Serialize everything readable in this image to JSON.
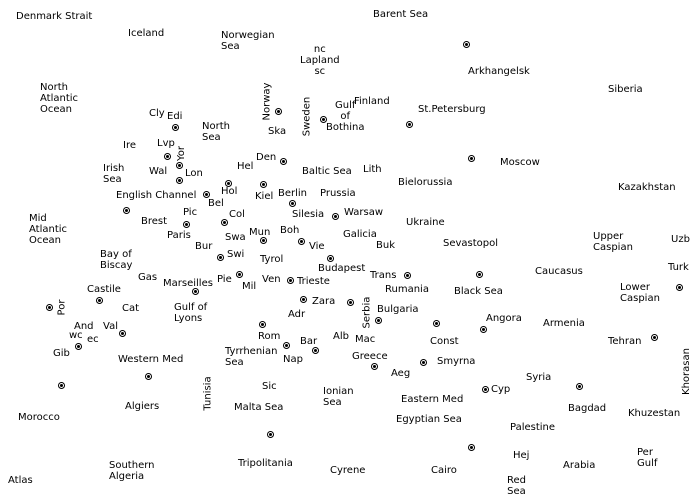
{
  "map": {
    "regions": [
      {
        "id": "denmark-strait",
        "label": "Denmark Strait"
      },
      {
        "id": "barent-sea",
        "label": "Barent Sea"
      },
      {
        "id": "iceland",
        "label": "Iceland"
      },
      {
        "id": "norwegian-sea",
        "label": "Norwegian\nSea"
      },
      {
        "id": "lapland",
        "label": "nc\nLapland\nsc"
      },
      {
        "id": "arkhangelsk",
        "label": "Arkhangelsk"
      },
      {
        "id": "siberia",
        "label": "Siberia"
      },
      {
        "id": "north-atlantic-ocean",
        "label": "North\nAtlantic\nOcean"
      },
      {
        "id": "norway",
        "label": "Norway"
      },
      {
        "id": "sweden",
        "label": "Sweden"
      },
      {
        "id": "gulf-of-bothina",
        "label": "Gulf\nof\nBothina"
      },
      {
        "id": "finland",
        "label": "Finland"
      },
      {
        "id": "st-petersburg",
        "label": "St.Petersburg"
      },
      {
        "id": "cly",
        "label": "Cly"
      },
      {
        "id": "edi",
        "label": "Edi"
      },
      {
        "id": "north-sea",
        "label": "North\nSea"
      },
      {
        "id": "ska",
        "label": "Ska"
      },
      {
        "id": "lvp",
        "label": "Lvp"
      },
      {
        "id": "yor",
        "label": "Yor"
      },
      {
        "id": "ire",
        "label": "Ire"
      },
      {
        "id": "wal",
        "label": "Wal"
      },
      {
        "id": "den",
        "label": "Den"
      },
      {
        "id": "hel",
        "label": "Hel"
      },
      {
        "id": "baltic-sea",
        "label": "Baltic Sea"
      },
      {
        "id": "lith",
        "label": "Lith"
      },
      {
        "id": "moscow",
        "label": "Moscow"
      },
      {
        "id": "irish-sea",
        "label": "Irish\nSea"
      },
      {
        "id": "lon",
        "label": "Lon"
      },
      {
        "id": "bielorussia",
        "label": "Bielorussia"
      },
      {
        "id": "kazakhstan",
        "label": "Kazakhstan"
      },
      {
        "id": "english-channel",
        "label": "English Channel"
      },
      {
        "id": "hol",
        "label": "Hol"
      },
      {
        "id": "kiel",
        "label": "Kiel"
      },
      {
        "id": "berlin",
        "label": "Berlin"
      },
      {
        "id": "prussia",
        "label": "Prussia"
      },
      {
        "id": "bel",
        "label": "Bel"
      },
      {
        "id": "silesia",
        "label": "Silesia"
      },
      {
        "id": "warsaw",
        "label": "Warsaw"
      },
      {
        "id": "mid-atlantic-ocean",
        "label": "Mid\nAtlantic\nOcean"
      },
      {
        "id": "brest",
        "label": "Brest"
      },
      {
        "id": "pic",
        "label": "Pic"
      },
      {
        "id": "col",
        "label": "Col"
      },
      {
        "id": "ukraine",
        "label": "Ukraine"
      },
      {
        "id": "paris",
        "label": "Paris"
      },
      {
        "id": "mun",
        "label": "Mun"
      },
      {
        "id": "boh",
        "label": "Boh"
      },
      {
        "id": "galicia",
        "label": "Galicia"
      },
      {
        "id": "swa",
        "label": "Swa"
      },
      {
        "id": "upper-caspian",
        "label": "Upper\nCaspian"
      },
      {
        "id": "uzb",
        "label": "Uzb"
      },
      {
        "id": "bur",
        "label": "Bur"
      },
      {
        "id": "vie",
        "label": "Vie"
      },
      {
        "id": "buk",
        "label": "Buk"
      },
      {
        "id": "sevastopol",
        "label": "Sevastopol"
      },
      {
        "id": "bay-of-biscay",
        "label": "Bay of\nBiscay"
      },
      {
        "id": "swi",
        "label": "Swi"
      },
      {
        "id": "tyrol",
        "label": "Tyrol"
      },
      {
        "id": "budapest",
        "label": "Budapest"
      },
      {
        "id": "trans",
        "label": "Trans"
      },
      {
        "id": "caucasus",
        "label": "Caucasus"
      },
      {
        "id": "turk",
        "label": "Turk"
      },
      {
        "id": "gas",
        "label": "Gas"
      },
      {
        "id": "marseilles",
        "label": "Marseilles"
      },
      {
        "id": "pie",
        "label": "Pie"
      },
      {
        "id": "mil",
        "label": "Mil"
      },
      {
        "id": "ven",
        "label": "Ven"
      },
      {
        "id": "trieste",
        "label": "Trieste"
      },
      {
        "id": "rumania",
        "label": "Rumania"
      },
      {
        "id": "black-sea",
        "label": "Black Sea"
      },
      {
        "id": "lower-caspian",
        "label": "Lower\nCaspian"
      },
      {
        "id": "castile",
        "label": "Castile"
      },
      {
        "id": "por",
        "label": "Por"
      },
      {
        "id": "cat",
        "label": "Cat"
      },
      {
        "id": "gulf-of-lyons",
        "label": "Gulf of\nLyons"
      },
      {
        "id": "zara",
        "label": "Zara"
      },
      {
        "id": "serbia",
        "label": "Serbia"
      },
      {
        "id": "bulgaria",
        "label": "Bulgaria"
      },
      {
        "id": "adr",
        "label": "Adr"
      },
      {
        "id": "angora",
        "label": "Angora"
      },
      {
        "id": "armenia",
        "label": "Armenia"
      },
      {
        "id": "and",
        "label": "And"
      },
      {
        "id": "wc",
        "label": "wc"
      },
      {
        "id": "ec",
        "label": "ec"
      },
      {
        "id": "val",
        "label": "Val"
      },
      {
        "id": "rom",
        "label": "Rom"
      },
      {
        "id": "alb",
        "label": "Alb"
      },
      {
        "id": "mac",
        "label": "Mac"
      },
      {
        "id": "const",
        "label": "Const"
      },
      {
        "id": "tehran",
        "label": "Tehran"
      },
      {
        "id": "gib",
        "label": "Gib"
      },
      {
        "id": "tyrrhenian-sea",
        "label": "Tyrrhenian\nSea"
      },
      {
        "id": "bar",
        "label": "Bar"
      },
      {
        "id": "nap",
        "label": "Nap"
      },
      {
        "id": "greece",
        "label": "Greece"
      },
      {
        "id": "smyrna",
        "label": "Smyrna"
      },
      {
        "id": "khorasan",
        "label": "Khorasan"
      },
      {
        "id": "western-med",
        "label": "Western Med"
      },
      {
        "id": "aeg",
        "label": "Aeg"
      },
      {
        "id": "syria",
        "label": "Syria"
      },
      {
        "id": "sic",
        "label": "Sic"
      },
      {
        "id": "ionian-sea",
        "label": "Ionian\nSea"
      },
      {
        "id": "cyp",
        "label": "Cyp"
      },
      {
        "id": "morocco",
        "label": "Morocco"
      },
      {
        "id": "algiers",
        "label": "Algiers"
      },
      {
        "id": "tunisia",
        "label": "Tunisia"
      },
      {
        "id": "malta-sea",
        "label": "Malta Sea"
      },
      {
        "id": "eastern-med",
        "label": "Eastern Med"
      },
      {
        "id": "bagdad",
        "label": "Bagdad"
      },
      {
        "id": "khuzestan",
        "label": "Khuzestan"
      },
      {
        "id": "egyptian-sea",
        "label": "Egyptian Sea"
      },
      {
        "id": "palestine",
        "label": "Palestine"
      },
      {
        "id": "hej",
        "label": "Hej"
      },
      {
        "id": "per-gulf",
        "label": "Per\nGulf"
      },
      {
        "id": "southern-algeria",
        "label": "Southern\nAlgeria"
      },
      {
        "id": "tripolitania",
        "label": "Tripolitania"
      },
      {
        "id": "cyrene",
        "label": "Cyrene"
      },
      {
        "id": "cairo",
        "label": "Cairo"
      },
      {
        "id": "arabia",
        "label": "Arabia"
      },
      {
        "id": "atlas",
        "label": "Atlas"
      },
      {
        "id": "red-sea",
        "label": "Red\nSea"
      }
    ],
    "supply_centers": [
      "arkhangelsk",
      "norway",
      "sweden",
      "st-petersburg",
      "edi",
      "lvp",
      "den",
      "moscow",
      "lon",
      "hol",
      "kiel",
      "bel",
      "brest",
      "warsaw",
      "berlin",
      "paris",
      "col",
      "mun",
      "vie",
      "budapest",
      "swi",
      "trans",
      "sevastopol",
      "marseilles",
      "mil",
      "trieste",
      "castile",
      "serbia",
      "turk",
      "por",
      "cat",
      "bulgaria",
      "zara",
      "rom",
      "val",
      "const",
      "angora",
      "gib",
      "tehran",
      "nap",
      "bar",
      "greece",
      "smyrna",
      "morocco",
      "western-med",
      "cyp",
      "bagdad",
      "tripolitania",
      "cairo"
    ]
  }
}
